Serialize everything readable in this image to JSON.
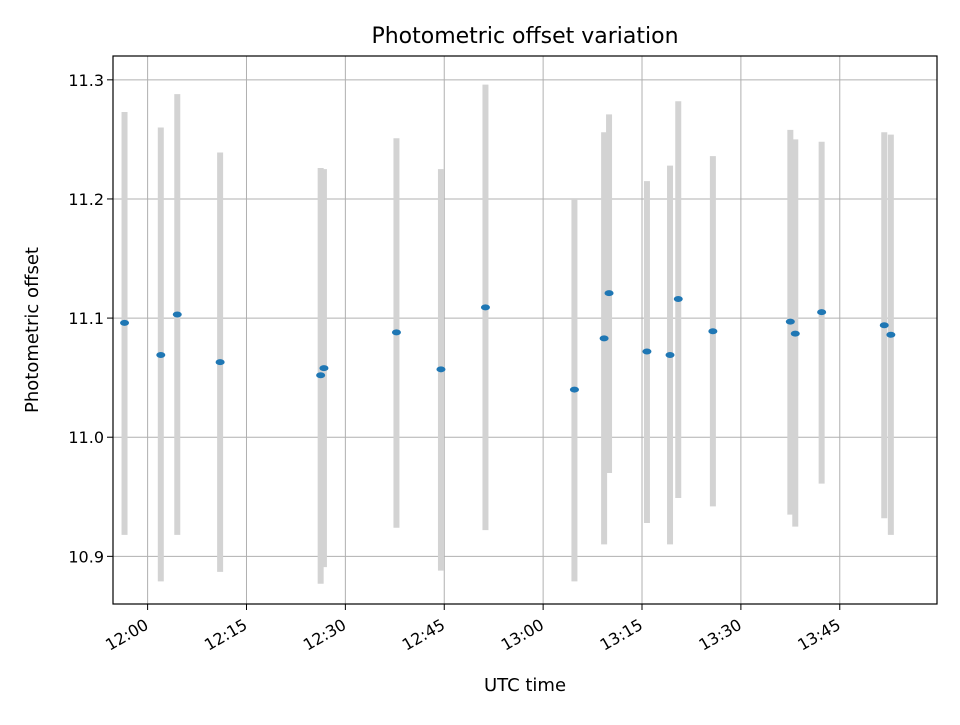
{
  "chart_data": {
    "type": "scatter",
    "title": "Photometric offset variation",
    "xlabel": "UTC time",
    "ylabel": "Photometric offset",
    "x_axis_type": "time",
    "xlim": [
      "11:54:45",
      "13:59:45"
    ],
    "ylim": [
      10.86,
      11.32
    ],
    "x_ticks": [
      "12:00",
      "12:15",
      "12:30",
      "12:45",
      "13:00",
      "13:15",
      "13:30",
      "13:45"
    ],
    "y_ticks": [
      "10.9",
      "11.0",
      "11.1",
      "11.2",
      "11.3"
    ],
    "grid": true,
    "legend": "none",
    "series": [
      {
        "marker_color": "#1f77b4",
        "errorbar_color": "#d3d3d3",
        "points": [
          {
            "t": "11:56:30",
            "y": 11.096,
            "low": 10.918,
            "high": 11.273
          },
          {
            "t": "12:02:00",
            "y": 11.069,
            "low": 10.879,
            "high": 11.26
          },
          {
            "t": "12:04:30",
            "y": 11.103,
            "low": 10.918,
            "high": 11.288
          },
          {
            "t": "12:11:00",
            "y": 11.063,
            "low": 10.887,
            "high": 11.239
          },
          {
            "t": "12:26:15",
            "y": 11.052,
            "low": 10.877,
            "high": 11.226
          },
          {
            "t": "12:26:45",
            "y": 11.058,
            "low": 10.891,
            "high": 11.225
          },
          {
            "t": "12:37:45",
            "y": 11.088,
            "low": 10.924,
            "high": 11.251
          },
          {
            "t": "12:44:30",
            "y": 11.057,
            "low": 10.888,
            "high": 11.225
          },
          {
            "t": "12:51:15",
            "y": 11.109,
            "low": 10.922,
            "high": 11.296
          },
          {
            "t": "13:04:45",
            "y": 11.04,
            "low": 10.879,
            "high": 11.2
          },
          {
            "t": "13:09:15",
            "y": 11.083,
            "low": 10.91,
            "high": 11.256
          },
          {
            "t": "13:10:00",
            "y": 11.121,
            "low": 10.97,
            "high": 11.271
          },
          {
            "t": "13:15:45",
            "y": 11.072,
            "low": 10.928,
            "high": 11.215
          },
          {
            "t": "13:19:15",
            "y": 11.069,
            "low": 10.91,
            "high": 11.228
          },
          {
            "t": "13:20:30",
            "y": 11.116,
            "low": 10.949,
            "high": 11.282
          },
          {
            "t": "13:25:45",
            "y": 11.089,
            "low": 10.942,
            "high": 11.236
          },
          {
            "t": "13:37:30",
            "y": 11.097,
            "low": 10.935,
            "high": 11.258
          },
          {
            "t": "13:38:15",
            "y": 11.087,
            "low": 10.925,
            "high": 11.25
          },
          {
            "t": "13:42:15",
            "y": 11.105,
            "low": 10.961,
            "high": 11.248
          },
          {
            "t": "13:51:45",
            "y": 11.094,
            "low": 10.932,
            "high": 11.256
          },
          {
            "t": "13:52:45",
            "y": 11.086,
            "low": 10.918,
            "high": 11.254
          }
        ]
      }
    ]
  }
}
